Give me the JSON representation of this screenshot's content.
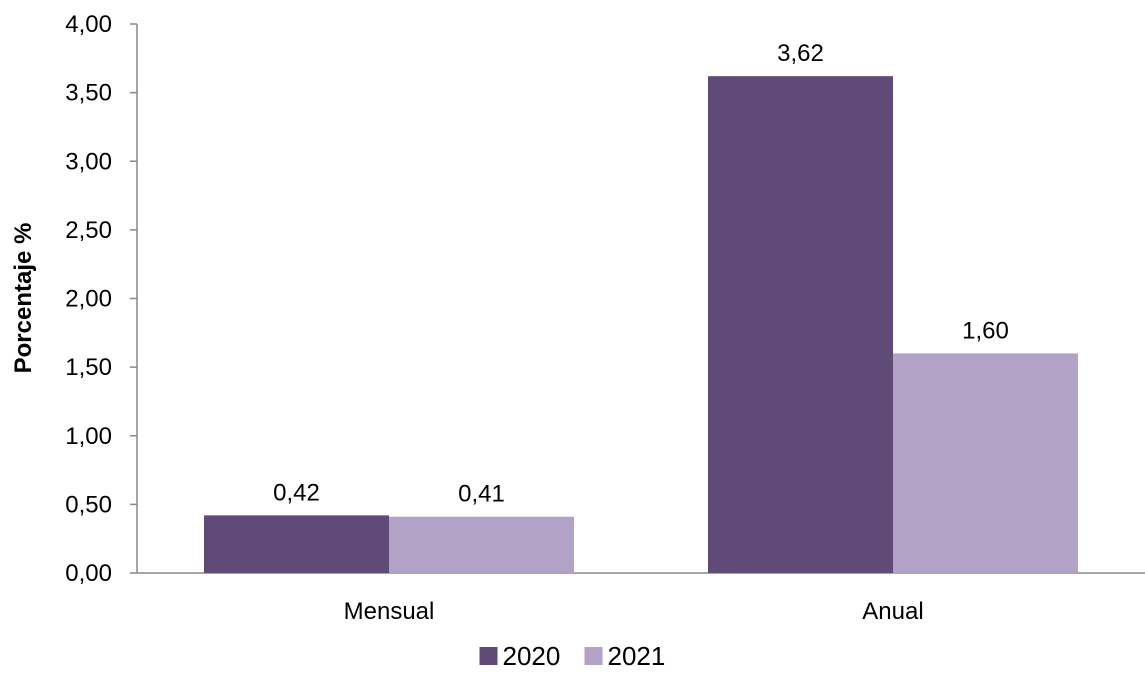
{
  "chart_data": {
    "type": "bar",
    "categories": [
      "Mensual",
      "Anual"
    ],
    "series": [
      {
        "name": "2020",
        "values": [
          0.42,
          3.62
        ],
        "labels": [
          "0,42",
          "3,62"
        ],
        "color": "#5f4a78"
      },
      {
        "name": "2021",
        "values": [
          0.41,
          1.6
        ],
        "labels": [
          "0,41",
          "1,60"
        ],
        "color": "#b1a2c6"
      }
    ],
    "ylabel": "Porcentaje %",
    "xlabel": "",
    "ylim": [
      0,
      4
    ],
    "yticks": [
      0,
      0.5,
      1,
      1.5,
      2,
      2.5,
      3,
      3.5,
      4
    ],
    "ytick_labels": [
      "0,00",
      "0,50",
      "1,00",
      "1,50",
      "2,00",
      "2,50",
      "3,00",
      "3,50",
      "4,00"
    ],
    "grid": false,
    "legend_position": "bottom-center"
  }
}
